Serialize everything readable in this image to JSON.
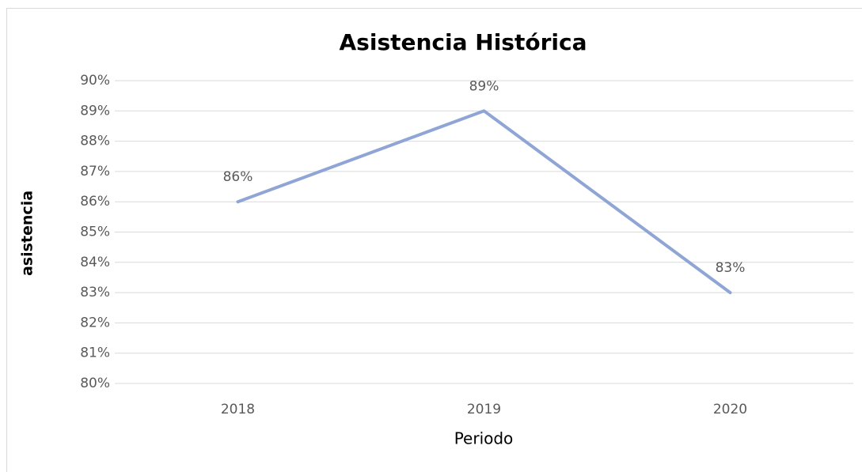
{
  "chart_data": {
    "type": "line",
    "title": "Asistencia Histórica",
    "x_label": "Periodo",
    "y_label": "asistencia",
    "categories": [
      "2018",
      "2019",
      "2020"
    ],
    "series": [
      {
        "name": "asistencia",
        "color": "#8ea5d6",
        "values": [
          86,
          89,
          83
        ],
        "value_labels": [
          "86%",
          "89%",
          "83%"
        ]
      }
    ],
    "ylim": [
      80,
      90
    ],
    "yticks": [
      {
        "value": 80,
        "label": "80%"
      },
      {
        "value": 81,
        "label": "81%"
      },
      {
        "value": 82,
        "label": "82%"
      },
      {
        "value": 83,
        "label": "83%"
      },
      {
        "value": 84,
        "label": "84%"
      },
      {
        "value": 85,
        "label": "85%"
      },
      {
        "value": 86,
        "label": "86%"
      },
      {
        "value": 87,
        "label": "87%"
      },
      {
        "value": 88,
        "label": "88%"
      },
      {
        "value": 89,
        "label": "89%"
      },
      {
        "value": 90,
        "label": "90%"
      }
    ],
    "grid": true
  }
}
